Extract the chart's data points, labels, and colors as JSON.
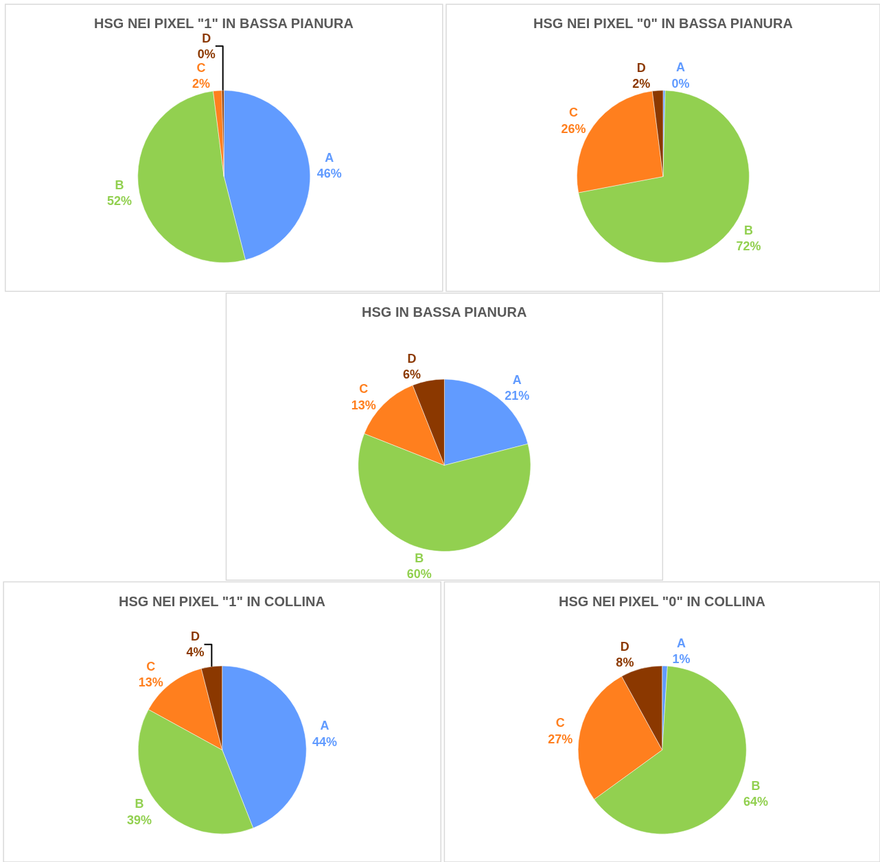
{
  "chart_data": [
    {
      "type": "pie",
      "title": "HSG NEI PIXEL \"1\" IN BASSA PIANURA",
      "categories": [
        "A",
        "B",
        "C",
        "D"
      ],
      "values": [
        46,
        52,
        1.6,
        0.4
      ],
      "value_labels": [
        "46%",
        "52%",
        "2%",
        "0%"
      ],
      "colors": [
        "#619bff",
        "#92d050",
        "#ff7f1e",
        "#8b3800"
      ]
    },
    {
      "type": "pie",
      "title": "HSG NEI PIXEL \"0\" IN BASSA PIANURA",
      "categories": [
        "A",
        "B",
        "C",
        "D"
      ],
      "values": [
        0.4,
        71.6,
        26,
        2
      ],
      "value_labels": [
        "0%",
        "72%",
        "26%",
        "2%"
      ],
      "colors": [
        "#619bff",
        "#92d050",
        "#ff7f1e",
        "#8b3800"
      ]
    },
    {
      "type": "pie",
      "title": "HSG IN BASSA PIANURA",
      "categories": [
        "A",
        "B",
        "C",
        "D"
      ],
      "values": [
        21,
        60,
        13,
        6
      ],
      "value_labels": [
        "21%",
        "60%",
        "13%",
        "6%"
      ],
      "colors": [
        "#619bff",
        "#92d050",
        "#ff7f1e",
        "#8b3800"
      ]
    },
    {
      "type": "pie",
      "title": "HSG NEI PIXEL \"1\" IN COLLINA",
      "categories": [
        "A",
        "B",
        "C",
        "D"
      ],
      "values": [
        44,
        39,
        13,
        4
      ],
      "value_labels": [
        "44%",
        "39%",
        "13%",
        "4%"
      ],
      "colors": [
        "#619bff",
        "#92d050",
        "#ff7f1e",
        "#8b3800"
      ]
    },
    {
      "type": "pie",
      "title": "HSG NEI PIXEL \"0\" IN COLLINA",
      "categories": [
        "A",
        "B",
        "C",
        "D"
      ],
      "values": [
        1,
        64,
        27,
        8
      ],
      "value_labels": [
        "1%",
        "64%",
        "27%",
        "8%"
      ],
      "colors": [
        "#619bff",
        "#92d050",
        "#ff7f1e",
        "#8b3800"
      ]
    }
  ]
}
